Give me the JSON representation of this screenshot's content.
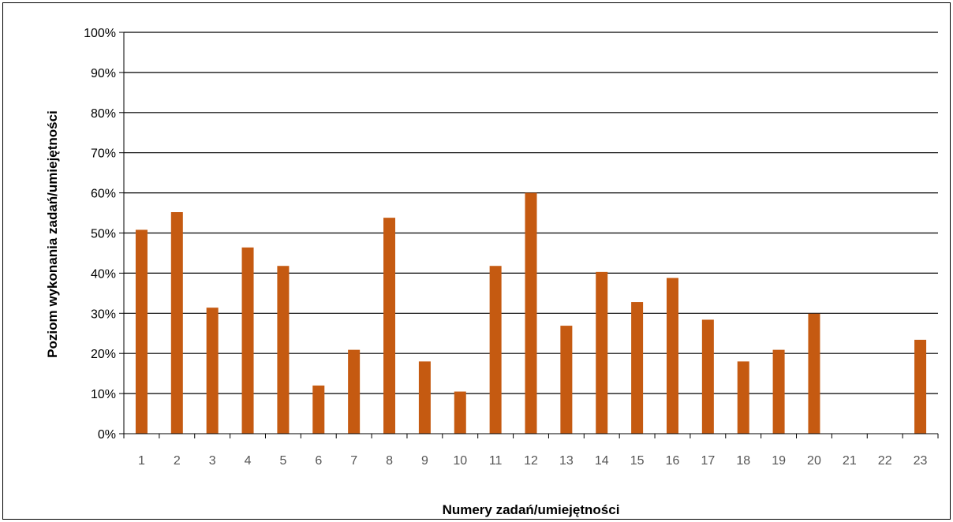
{
  "chart_data": {
    "type": "bar",
    "title": "",
    "xlabel": "Numery zadań/umiejętności",
    "ylabel": "Poziom wykonania zadań/umiejętności",
    "ylim": [
      0,
      100
    ],
    "y_tick_labels": [
      "0%",
      "10%",
      "20%",
      "30%",
      "40%",
      "50%",
      "60%",
      "70%",
      "80%",
      "90%",
      "100%"
    ],
    "categories": [
      "1",
      "2",
      "3",
      "4",
      "5",
      "6",
      "7",
      "8",
      "9",
      "10",
      "11",
      "12",
      "13",
      "14",
      "15",
      "16",
      "17",
      "18",
      "19",
      "20",
      "21",
      "22",
      "23"
    ],
    "values": [
      50.8,
      55.2,
      31.4,
      46.4,
      41.8,
      12.0,
      20.9,
      53.8,
      18.0,
      10.5,
      41.8,
      60.0,
      26.9,
      40.3,
      32.8,
      38.8,
      28.4,
      18.0,
      20.9,
      29.9,
      0,
      0,
      23.4
    ],
    "grid": true,
    "legend": "none",
    "bar_color": "#C55A11"
  }
}
